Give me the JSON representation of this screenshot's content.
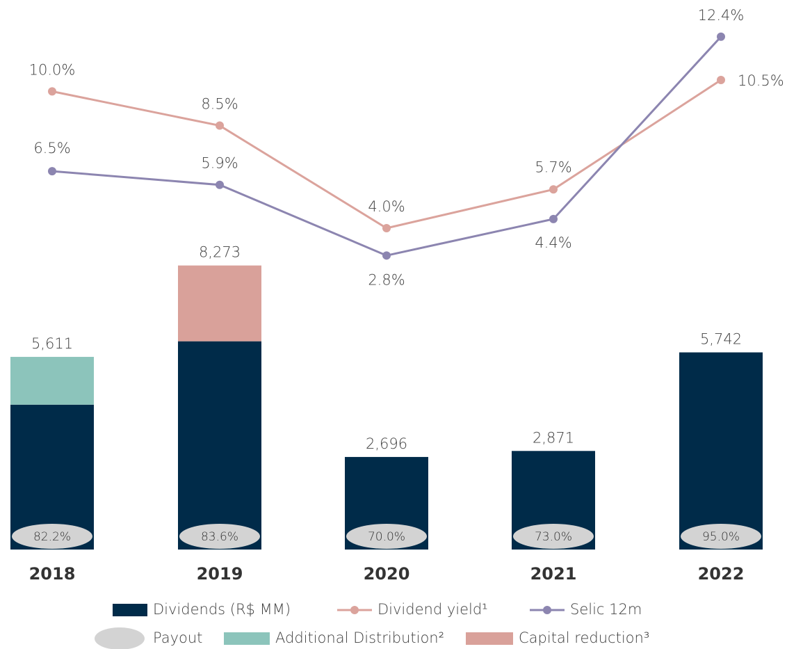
{
  "chart_data": {
    "type": "bar",
    "categories": [
      "2018",
      "2019",
      "2020",
      "2021",
      "2022"
    ],
    "series": [
      {
        "name": "Dividends (R$ MM)",
        "type": "bar",
        "color": "#002b49",
        "values": [
          4219,
          6065,
          2696,
          2871,
          5742
        ]
      },
      {
        "name": "Additional Distribution²",
        "type": "bar",
        "color": "#8cc4bb",
        "values": [
          1392,
          null,
          null,
          null,
          null
        ]
      },
      {
        "name": "Capital reduction³",
        "type": "bar",
        "color": "#d9a19a",
        "values": [
          null,
          2208,
          null,
          null,
          null
        ]
      },
      {
        "name": "Dividend yield¹",
        "type": "line",
        "axis": "y2",
        "color": "#dba39c",
        "values": [
          10.0,
          8.5,
          4.0,
          5.7,
          10.5
        ],
        "value_labels": [
          "10.0%",
          "8.5%",
          "4.0%",
          "5.7%",
          "10.5%"
        ]
      },
      {
        "name": "Selic 12m",
        "type": "line",
        "axis": "y2",
        "color": "#8c85b0",
        "values": [
          6.5,
          5.9,
          2.8,
          4.4,
          12.4
        ],
        "value_labels": [
          "6.5%",
          "5.9%",
          "2.8%",
          "4.4%",
          "12.4%"
        ]
      }
    ],
    "totals": [
      5611,
      8273,
      2696,
      2871,
      5742
    ],
    "total_labels": [
      "5,611",
      "8,273",
      "2,696",
      "2,871",
      "5,742"
    ],
    "payout": {
      "name": "Payout",
      "color": "#d3d3d3",
      "values": [
        82.2,
        83.6,
        70.0,
        73.0,
        95.0
      ],
      "value_labels": [
        "82.2%",
        "83.6%",
        "70.0%",
        "73.0%",
        "95.0%"
      ]
    },
    "ylim": [
      0,
      15600
    ],
    "y2lim": [
      -10.1,
      13.4
    ]
  }
}
